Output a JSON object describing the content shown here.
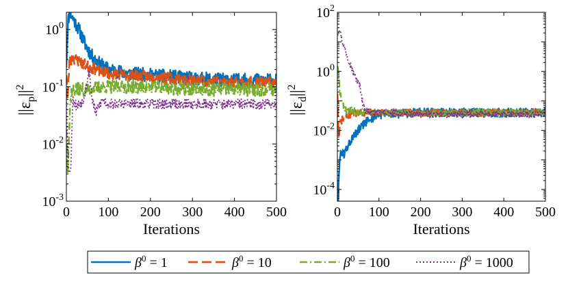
{
  "chart_data": [
    {
      "type": "line",
      "xlabel": "Iterations",
      "ylabel_base": "||ε",
      "ylabel_sub": "p",
      "ylabel_exp": "2",
      "xlim": [
        0,
        500
      ],
      "ylim": [
        0.001,
        2
      ],
      "yscale": "log",
      "x_ticks": [
        "0",
        "100",
        "200",
        "300",
        "400",
        "500"
      ],
      "y_ticks": [
        {
          "base": "10",
          "exp": "0"
        },
        {
          "base": "10",
          "exp": "-1"
        },
        {
          "base": "10",
          "exp": "-2"
        },
        {
          "base": "10",
          "exp": "-3"
        }
      ],
      "series": [
        {
          "name": "β0 = 1",
          "keypoints": [
            [
              0,
              0.25
            ],
            [
              4,
              1.4
            ],
            [
              8,
              2.0
            ],
            [
              15,
              1.6
            ],
            [
              30,
              1.0
            ],
            [
              45,
              0.55
            ],
            [
              60,
              0.35
            ],
            [
              80,
              0.25
            ],
            [
              100,
              0.2
            ],
            [
              150,
              0.17
            ],
            [
              200,
              0.16
            ],
            [
              300,
              0.14
            ],
            [
              400,
              0.13
            ],
            [
              500,
              0.13
            ]
          ],
          "noise": 0.12,
          "seed": 11
        },
        {
          "name": "β0 = 10",
          "keypoints": [
            [
              0,
              0.18
            ],
            [
              3,
              0.06
            ],
            [
              7,
              0.26
            ],
            [
              15,
              0.32
            ],
            [
              30,
              0.28
            ],
            [
              50,
              0.23
            ],
            [
              80,
              0.19
            ],
            [
              100,
              0.17
            ],
            [
              200,
              0.15
            ],
            [
              300,
              0.13
            ],
            [
              400,
              0.12
            ],
            [
              500,
              0.12
            ]
          ],
          "noise": 0.1,
          "seed": 23
        },
        {
          "name": "β0 = 100",
          "keypoints": [
            [
              0,
              0.02
            ],
            [
              3,
              0.004
            ],
            [
              6,
              0.012
            ],
            [
              9,
              0.05
            ],
            [
              12,
              0.08
            ],
            [
              20,
              0.09
            ],
            [
              50,
              0.09
            ],
            [
              100,
              0.1
            ],
            [
              200,
              0.1
            ],
            [
              300,
              0.09
            ],
            [
              400,
              0.09
            ],
            [
              500,
              0.09
            ]
          ],
          "noise": 0.12,
          "seed": 37
        },
        {
          "name": "β0 = 1000",
          "keypoints": [
            [
              0,
              0.06
            ],
            [
              5,
              0.004
            ],
            [
              10,
              0.003
            ],
            [
              15,
              0.06
            ],
            [
              25,
              0.045
            ],
            [
              40,
              0.06
            ],
            [
              55,
              0.19
            ],
            [
              60,
              0.07
            ],
            [
              70,
              0.035
            ],
            [
              85,
              0.06
            ],
            [
              100,
              0.05
            ],
            [
              200,
              0.05
            ],
            [
              300,
              0.05
            ],
            [
              400,
              0.05
            ],
            [
              500,
              0.05
            ]
          ],
          "noise": 0.09,
          "seed": 53
        }
      ]
    },
    {
      "type": "line",
      "xlabel": "Iterations",
      "ylabel_base": "||ε",
      "ylabel_sub": "d",
      "ylabel_exp": "2",
      "xlim": [
        0,
        500
      ],
      "ylim": [
        4e-05,
        100
      ],
      "yscale": "log",
      "x_ticks": [
        "0",
        "100",
        "200",
        "300",
        "400",
        "500"
      ],
      "y_ticks": [
        {
          "base": "10",
          "exp": "2"
        },
        {
          "base": "10",
          "exp": "0"
        },
        {
          "base": "10",
          "exp": "-2"
        },
        {
          "base": "10",
          "exp": "-4"
        }
      ],
      "series": [
        {
          "name": "β0 = 1",
          "keypoints": [
            [
              0,
              0.0002
            ],
            [
              2,
              3e-05
            ],
            [
              4,
              0.0005
            ],
            [
              8,
              0.002
            ],
            [
              15,
              0.0015
            ],
            [
              30,
              0.004
            ],
            [
              50,
              0.01
            ],
            [
              70,
              0.02
            ],
            [
              90,
              0.03
            ],
            [
              100,
              0.035
            ],
            [
              200,
              0.04
            ],
            [
              300,
              0.04
            ],
            [
              400,
              0.04
            ],
            [
              500,
              0.04
            ]
          ],
          "noise": 0.15,
          "seed": 61
        },
        {
          "name": "β0 = 10",
          "keypoints": [
            [
              0,
              0.2
            ],
            [
              2,
              0.02
            ],
            [
              4,
              0.006
            ],
            [
              7,
              0.02
            ],
            [
              15,
              0.025
            ],
            [
              30,
              0.035
            ],
            [
              60,
              0.04
            ],
            [
              100,
              0.04
            ],
            [
              200,
              0.04
            ],
            [
              300,
              0.04
            ],
            [
              400,
              0.04
            ],
            [
              500,
              0.04
            ]
          ],
          "noise": 0.12,
          "seed": 71
        },
        {
          "name": "β0 = 100",
          "keypoints": [
            [
              0,
              1.5
            ],
            [
              3,
              0.8
            ],
            [
              6,
              0.2
            ],
            [
              12,
              0.08
            ],
            [
              20,
              0.05
            ],
            [
              40,
              0.045
            ],
            [
              100,
              0.04
            ],
            [
              200,
              0.04
            ],
            [
              300,
              0.04
            ],
            [
              400,
              0.04
            ],
            [
              500,
              0.04
            ]
          ],
          "noise": 0.12,
          "seed": 83
        },
        {
          "name": "β0 = 1000",
          "keypoints": [
            [
              0,
              20
            ],
            [
              5,
              30
            ],
            [
              12,
              10
            ],
            [
              25,
              3
            ],
            [
              40,
              0.8
            ],
            [
              55,
              0.3
            ],
            [
              60,
              0.1
            ],
            [
              66,
              0.05
            ],
            [
              80,
              0.04
            ],
            [
              100,
              0.04
            ],
            [
              200,
              0.035
            ],
            [
              300,
              0.035
            ],
            [
              400,
              0.035
            ],
            [
              500,
              0.035
            ]
          ],
          "noise": 0.12,
          "seed": 97
        }
      ]
    }
  ],
  "legend": {
    "position": "bottom-center",
    "entries": [
      {
        "sym": "β",
        "sup": "0",
        "rest": " = 1"
      },
      {
        "sym": "β",
        "sup": "0",
        "rest": " = 10"
      },
      {
        "sym": "β",
        "sup": "0",
        "rest": " = 100"
      },
      {
        "sym": "β",
        "sup": "0",
        "rest": " = 1000"
      }
    ]
  },
  "colors": {
    "series": [
      "#0072BD",
      "#D95319",
      "#77AC30",
      "#7E2F8E"
    ],
    "axis": "#000000"
  }
}
